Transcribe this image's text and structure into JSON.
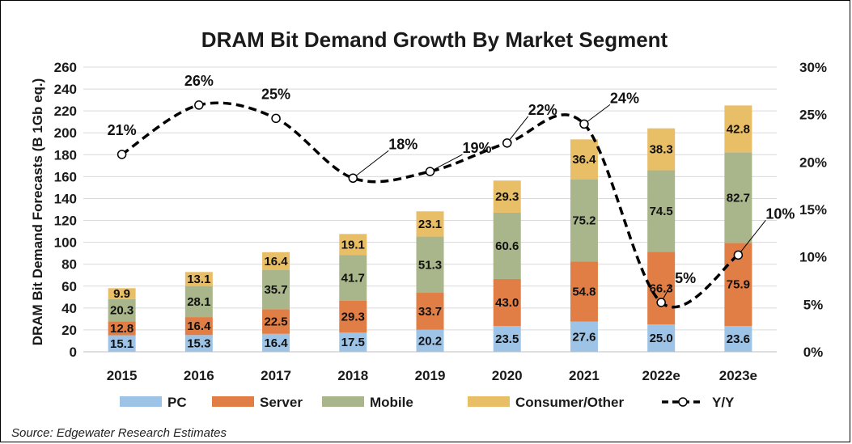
{
  "chart_data": {
    "type": "bar",
    "stacked": true,
    "title": "DRAM Bit Demand Growth By Market Segment",
    "ylabel": "DRAM Bit Demand Forecasts (B 1Gb eq.)",
    "y2label": "",
    "categories": [
      "2015",
      "2016",
      "2017",
      "2018",
      "2019",
      "2020",
      "2021",
      "2022e",
      "2023e"
    ],
    "ylim": [
      0,
      260
    ],
    "yticks": [
      0,
      20,
      40,
      60,
      80,
      100,
      120,
      140,
      160,
      180,
      200,
      220,
      240,
      260
    ],
    "y2lim": [
      0,
      30
    ],
    "y2ticks": [
      "0%",
      "5%",
      "10%",
      "15%",
      "20%",
      "25%",
      "30%"
    ],
    "series": [
      {
        "name": "PC",
        "color": "#9DC3E6",
        "values": [
          15.1,
          15.3,
          16.4,
          17.5,
          20.2,
          23.5,
          27.6,
          25.0,
          23.6
        ],
        "labels": [
          "15.1",
          "15.3",
          "16.4",
          "17.5",
          "20.2",
          "23.5",
          "27.6",
          "25.0",
          "23.6"
        ]
      },
      {
        "name": "Server",
        "color": "#E07E45",
        "values": [
          12.8,
          16.4,
          22.5,
          29.3,
          33.7,
          43.0,
          54.8,
          66.3,
          75.9
        ],
        "labels": [
          "12.8",
          "16.4",
          "22.5",
          "29.3",
          "33.7",
          "43.0",
          "54.8",
          "66.3",
          "75.9"
        ]
      },
      {
        "name": "Mobile",
        "color": "#A9B58A",
        "values": [
          20.3,
          28.1,
          35.7,
          41.7,
          51.3,
          60.6,
          75.2,
          74.5,
          82.7
        ],
        "labels": [
          "20.3",
          "28.1",
          "35.7",
          "41.7",
          "51.3",
          "60.6",
          "75.2",
          "74.5",
          "82.7"
        ]
      },
      {
        "name": "Consumer/Other",
        "color": "#E8BE67",
        "values": [
          9.9,
          13.1,
          16.4,
          19.1,
          23.1,
          29.3,
          36.4,
          38.3,
          42.8
        ],
        "labels": [
          "9.9",
          "13.1",
          "16.4",
          "19.1",
          "23.1",
          "29.3",
          "36.4",
          "38.3",
          "42.8"
        ]
      }
    ],
    "line": {
      "name": "Y/Y",
      "axis": "secondary",
      "values": [
        20.8,
        26.0,
        24.6,
        18.3,
        19.0,
        22.0,
        24.0,
        5.2,
        10.2
      ],
      "labels": [
        "21%",
        "26%",
        "25%",
        "18%",
        "19%",
        "22%",
        "24%",
        "5%",
        "10%"
      ]
    },
    "grid": true,
    "legend_position": "bottom"
  },
  "source": "Source: Edgewater Research Estimates"
}
